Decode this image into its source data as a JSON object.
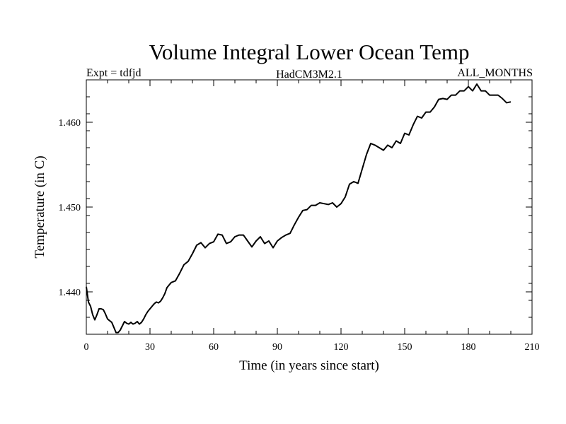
{
  "chart_data": {
    "type": "line",
    "title": "Volume Integral Lower Ocean Temp",
    "subtitle_left": "Expt = tdfjd",
    "subtitle_center": "HadCM3M2.1",
    "subtitle_right": "ALL_MONTHS",
    "xlabel": "Time (in years since start)",
    "ylabel": "Temperature (in C)",
    "xlim": [
      0,
      210
    ],
    "ylim": [
      1.435,
      1.465
    ],
    "xticks": [
      0,
      30,
      60,
      90,
      120,
      150,
      180,
      210
    ],
    "xtick_labels": [
      "0",
      "30",
      "60",
      "90",
      "120",
      "150",
      "180",
      "210"
    ],
    "yticks": [
      1.44,
      1.45,
      1.46
    ],
    "ytick_labels": [
      "1.440",
      "1.450",
      "1.460"
    ],
    "grid": false,
    "series": [
      {
        "name": "Volume Integral Lower Ocean Temp",
        "color": "#000000",
        "x": [
          0,
          1,
          2,
          3,
          4,
          5,
          6,
          7,
          8,
          9,
          10,
          11,
          12,
          13,
          14,
          15,
          16,
          17,
          18,
          19,
          20,
          21,
          22,
          23,
          24,
          25,
          26,
          27,
          28,
          29,
          30,
          31,
          32,
          33,
          34,
          35,
          36,
          37,
          38,
          39,
          40,
          42,
          44,
          46,
          48,
          50,
          52,
          54,
          56,
          58,
          60,
          62,
          64,
          66,
          68,
          70,
          72,
          74,
          76,
          78,
          80,
          82,
          84,
          86,
          88,
          90,
          92,
          94,
          96,
          98,
          100,
          102,
          104,
          106,
          108,
          110,
          112,
          114,
          116,
          118,
          120,
          122,
          124,
          126,
          128,
          130,
          132,
          134,
          136,
          138,
          140,
          142,
          144,
          146,
          148,
          150,
          152,
          154,
          156,
          158,
          160,
          162,
          164,
          166,
          168,
          170,
          172,
          174,
          176,
          178,
          180,
          182,
          184,
          186,
          188,
          190,
          192,
          194,
          196,
          198,
          200
        ],
        "y": [
          1.4406,
          1.4388,
          1.4383,
          1.4373,
          1.4367,
          1.4373,
          1.438,
          1.438,
          1.4379,
          1.4374,
          1.4368,
          1.4366,
          1.4364,
          1.4358,
          1.4352,
          1.4352,
          1.4355,
          1.436,
          1.4365,
          1.4363,
          1.4362,
          1.4364,
          1.4362,
          1.4363,
          1.4365,
          1.4362,
          1.4364,
          1.4368,
          1.4373,
          1.4377,
          1.438,
          1.4383,
          1.4386,
          1.4388,
          1.4387,
          1.4389,
          1.4393,
          1.4398,
          1.4405,
          1.4408,
          1.4411,
          1.4413,
          1.4422,
          1.4432,
          1.4436,
          1.4445,
          1.4455,
          1.4458,
          1.4452,
          1.4457,
          1.4459,
          1.4468,
          1.4467,
          1.4457,
          1.4459,
          1.4465,
          1.4467,
          1.4467,
          1.446,
          1.4453,
          1.446,
          1.4465,
          1.4457,
          1.446,
          1.4452,
          1.446,
          1.4464,
          1.4467,
          1.4469,
          1.4479,
          1.4488,
          1.4496,
          1.4497,
          1.4502,
          1.4502,
          1.4505,
          1.4504,
          1.4503,
          1.4505,
          1.45,
          1.4504,
          1.4512,
          1.4527,
          1.453,
          1.4528,
          1.4545,
          1.4562,
          1.4575,
          1.4573,
          1.457,
          1.4567,
          1.4573,
          1.457,
          1.4578,
          1.4575,
          1.4587,
          1.4585,
          1.4597,
          1.4607,
          1.4605,
          1.4612,
          1.4612,
          1.4618,
          1.4627,
          1.4628,
          1.4627,
          1.4632,
          1.4632,
          1.4637,
          1.4637,
          1.4642,
          1.4637,
          1.4645,
          1.4637,
          1.4637,
          1.4632,
          1.4632,
          1.4632,
          1.4628,
          1.4623,
          1.4624
        ]
      }
    ]
  }
}
